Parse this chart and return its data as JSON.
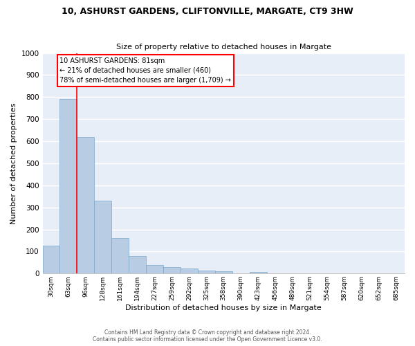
{
  "title": "10, ASHURST GARDENS, CLIFTONVILLE, MARGATE, CT9 3HW",
  "subtitle": "Size of property relative to detached houses in Margate",
  "xlabel": "Distribution of detached houses by size in Margate",
  "ylabel": "Number of detached properties",
  "bar_color": "#b8cce4",
  "bar_edge_color": "#7ba7c9",
  "background_color": "#e8eef8",
  "grid_color": "#ffffff",
  "categories": [
    "30sqm",
    "63sqm",
    "96sqm",
    "128sqm",
    "161sqm",
    "194sqm",
    "227sqm",
    "259sqm",
    "292sqm",
    "325sqm",
    "358sqm",
    "390sqm",
    "423sqm",
    "456sqm",
    "489sqm",
    "521sqm",
    "554sqm",
    "587sqm",
    "620sqm",
    "652sqm",
    "685sqm"
  ],
  "values": [
    125,
    793,
    620,
    330,
    162,
    78,
    40,
    28,
    22,
    15,
    10,
    0,
    8,
    0,
    0,
    0,
    0,
    0,
    0,
    0,
    0
  ],
  "ylim": [
    0,
    1000
  ],
  "yticks": [
    0,
    100,
    200,
    300,
    400,
    500,
    600,
    700,
    800,
    900,
    1000
  ],
  "red_line_x": 1.5,
  "annotation_line1": "10 ASHURST GARDENS: 81sqm",
  "annotation_line2": "← 21% of detached houses are smaller (460)",
  "annotation_line3": "78% of semi-detached houses are larger (1,709) →",
  "footer_line1": "Contains HM Land Registry data © Crown copyright and database right 2024.",
  "footer_line2": "Contains public sector information licensed under the Open Government Licence v3.0."
}
